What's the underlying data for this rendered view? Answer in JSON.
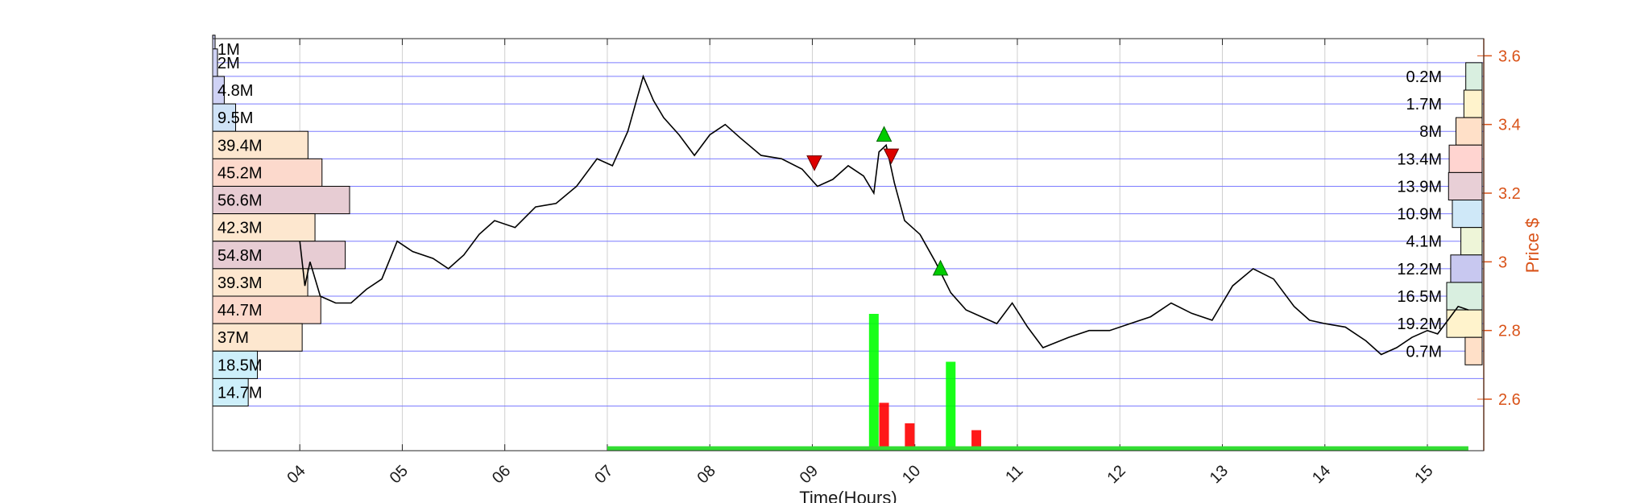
{
  "chart_data": {
    "type": "line",
    "title": "",
    "xlabel": "Time(Hours)",
    "ylabel": "Price $",
    "x_range": [
      3.15,
      15.55
    ],
    "ylim": [
      2.45,
      3.65
    ],
    "x_ticks": [
      {
        "value": 4,
        "label": "04"
      },
      {
        "value": 5,
        "label": "05"
      },
      {
        "value": 6,
        "label": "06"
      },
      {
        "value": 7,
        "label": "07"
      },
      {
        "value": 8,
        "label": "08"
      },
      {
        "value": 9,
        "label": "09"
      },
      {
        "value": 10,
        "label": "10"
      },
      {
        "value": 11,
        "label": "11"
      },
      {
        "value": 12,
        "label": "12"
      },
      {
        "value": 13,
        "label": "13"
      },
      {
        "value": 14,
        "label": "14"
      },
      {
        "value": 15,
        "label": "15"
      }
    ],
    "y_ticks": [
      {
        "value": 2.6,
        "label": "2.6"
      },
      {
        "value": 2.8,
        "label": "2.8"
      },
      {
        "value": 3.0,
        "label": "3"
      },
      {
        "value": 3.2,
        "label": "3.2"
      },
      {
        "value": 3.4,
        "label": "3.4"
      },
      {
        "value": 3.6,
        "label": "3.6"
      }
    ],
    "grid": true,
    "price_series": {
      "x": [
        4.0,
        4.05,
        4.1,
        4.2,
        4.35,
        4.5,
        4.65,
        4.8,
        4.95,
        5.1,
        5.3,
        5.45,
        5.6,
        5.75,
        5.9,
        6.1,
        6.3,
        6.5,
        6.7,
        6.9,
        7.05,
        7.2,
        7.35,
        7.45,
        7.55,
        7.7,
        7.85,
        8.0,
        8.15,
        8.3,
        8.5,
        8.7,
        8.9,
        9.05,
        9.2,
        9.35,
        9.5,
        9.6,
        9.65,
        9.72,
        9.8,
        9.9,
        10.05,
        10.2,
        10.35,
        10.5,
        10.65,
        10.8,
        10.95,
        11.1,
        11.25,
        11.5,
        11.7,
        11.9,
        12.1,
        12.3,
        12.5,
        12.7,
        12.9,
        13.1,
        13.3,
        13.5,
        13.7,
        13.85,
        14.0,
        14.2,
        14.4,
        14.55,
        14.7,
        14.85,
        15.0,
        15.1,
        15.2,
        15.3,
        15.4
      ],
      "y": [
        3.06,
        2.93,
        3.0,
        2.9,
        2.88,
        2.88,
        2.92,
        2.95,
        3.06,
        3.03,
        3.01,
        2.98,
        3.02,
        3.08,
        3.12,
        3.1,
        3.16,
        3.17,
        3.22,
        3.3,
        3.28,
        3.38,
        3.54,
        3.47,
        3.42,
        3.37,
        3.31,
        3.37,
        3.4,
        3.36,
        3.31,
        3.3,
        3.27,
        3.22,
        3.24,
        3.28,
        3.25,
        3.2,
        3.32,
        3.34,
        3.23,
        3.12,
        3.08,
        3.0,
        2.91,
        2.86,
        2.84,
        2.82,
        2.88,
        2.81,
        2.75,
        2.78,
        2.8,
        2.8,
        2.82,
        2.84,
        2.88,
        2.85,
        2.83,
        2.93,
        2.98,
        2.95,
        2.87,
        2.83,
        2.82,
        2.81,
        2.77,
        2.73,
        2.75,
        2.78,
        2.8,
        2.79,
        2.83,
        2.87,
        2.86
      ]
    },
    "buy_markers": [
      {
        "x": 9.7,
        "y": 3.37
      },
      {
        "x": 10.25,
        "y": 2.98
      }
    ],
    "sell_markers": [
      {
        "x": 9.02,
        "y": 3.29
      },
      {
        "x": 9.77,
        "y": 3.31
      }
    ],
    "volume_bars": [
      {
        "x": 7.9,
        "volume": 1,
        "color": "#00ff00"
      },
      {
        "x": 9.6,
        "volume": 100,
        "color": "#00ff00"
      },
      {
        "x": 9.7,
        "volume": 35,
        "color": "#ff0000"
      },
      {
        "x": 9.95,
        "volume": 20,
        "color": "#ff0000"
      },
      {
        "x": 10.35,
        "volume": 65,
        "color": "#00ff00"
      },
      {
        "x": 10.6,
        "volume": 15,
        "color": "#ff0000"
      }
    ],
    "volume_profile_left": [
      {
        "price": 3.62,
        "label": "1M",
        "volume": 1
      },
      {
        "price": 3.58,
        "label": "2M",
        "volume": 2
      },
      {
        "price": 3.5,
        "label": "4.8M",
        "volume": 4.8
      },
      {
        "price": 3.42,
        "label": "9.5M",
        "volume": 9.5
      },
      {
        "price": 3.34,
        "label": "39.4M",
        "volume": 39.4
      },
      {
        "price": 3.26,
        "label": "45.2M",
        "volume": 45.2
      },
      {
        "price": 3.18,
        "label": "56.6M",
        "volume": 56.6
      },
      {
        "price": 3.1,
        "label": "42.3M",
        "volume": 42.3
      },
      {
        "price": 3.02,
        "label": "54.8M",
        "volume": 54.8
      },
      {
        "price": 2.94,
        "label": "39.3M",
        "volume": 39.3
      },
      {
        "price": 2.86,
        "label": "44.7M",
        "volume": 44.7
      },
      {
        "price": 2.78,
        "label": "37M",
        "volume": 37
      },
      {
        "price": 2.7,
        "label": "18.5M",
        "volume": 18.5
      },
      {
        "price": 2.62,
        "label": "14.7M",
        "volume": 14.7
      }
    ],
    "volume_profile_right": [
      {
        "price": 3.54,
        "label": "0.2M",
        "volume": 0.2
      },
      {
        "price": 3.46,
        "label": "1.7M",
        "volume": 1.7
      },
      {
        "price": 3.38,
        "label": "8M",
        "volume": 8
      },
      {
        "price": 3.3,
        "label": "13.4M",
        "volume": 13.4
      },
      {
        "price": 3.22,
        "label": "13.9M",
        "volume": 13.9
      },
      {
        "price": 3.14,
        "label": "10.9M",
        "volume": 10.9
      },
      {
        "price": 3.06,
        "label": "4.1M",
        "volume": 4.1
      },
      {
        "price": 2.98,
        "label": "12.2M",
        "volume": 12.2
      },
      {
        "price": 2.9,
        "label": "16.5M",
        "volume": 16.5
      },
      {
        "price": 2.82,
        "label": "19.2M",
        "volume": 19.2
      },
      {
        "price": 2.74,
        "label": "0.7M",
        "volume": 0.7
      }
    ],
    "colors": {
      "price_line": "#000000",
      "grid_horizontal": "#7b7bff",
      "grid_vertical": "#d0d0d0",
      "right_axis": "#d95319",
      "buy_marker": "#00cc00",
      "sell_marker": "#dd0000"
    }
  }
}
